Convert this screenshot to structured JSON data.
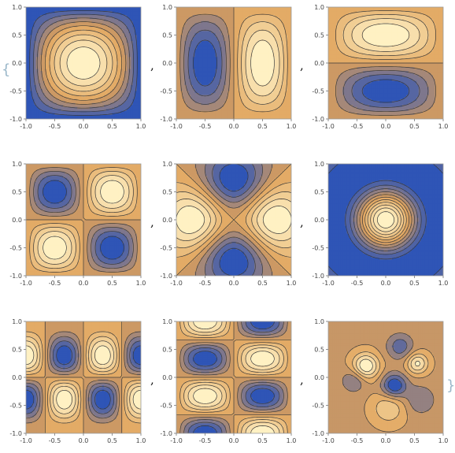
{
  "list": {
    "open_brace": "{",
    "close_brace": "}",
    "separator": ","
  },
  "palette": {
    "low": "#2f55b6",
    "mid": "#e0a25a",
    "high": "#fff1c3",
    "contour_line": "#3a3a3a"
  },
  "chart_data": [
    {
      "type": "contour",
      "id": "r1c1",
      "mode": "f1",
      "xlim": [
        -1,
        1
      ],
      "ylim": [
        -1,
        1
      ],
      "xticks": [
        -1.0,
        -0.5,
        0.0,
        0.5,
        1.0
      ],
      "yticks": [
        -1.0,
        -0.5,
        0.0,
        0.5,
        1.0
      ],
      "tick_labels": [
        "-1.0",
        "-0.5",
        "0.0",
        "0.5",
        "1.0"
      ],
      "levels": 9
    },
    {
      "type": "contour",
      "id": "r1c2",
      "mode": "f2",
      "xlim": [
        -1,
        1
      ],
      "ylim": [
        -1,
        1
      ],
      "xticks": [
        -1.0,
        -0.5,
        0.0,
        0.5,
        1.0
      ],
      "yticks": [
        -1.0,
        -0.5,
        0.0,
        0.5,
        1.0
      ],
      "tick_labels": [
        "-1.0",
        "-0.5",
        "0.0",
        "0.5",
        "1.0"
      ],
      "levels": 9
    },
    {
      "type": "contour",
      "id": "r1c3",
      "mode": "f3",
      "xlim": [
        -1,
        1
      ],
      "ylim": [
        -1,
        1
      ],
      "xticks": [
        -1.0,
        -0.5,
        0.0,
        0.5,
        1.0
      ],
      "yticks": [
        -1.0,
        -0.5,
        0.0,
        0.5,
        1.0
      ],
      "tick_labels": [
        "-1.0",
        "-0.5",
        "0.0",
        "0.5",
        "1.0"
      ],
      "levels": 9
    },
    {
      "type": "contour",
      "id": "r2c1",
      "mode": "f4",
      "xlim": [
        -1,
        1
      ],
      "ylim": [
        -1,
        1
      ],
      "xticks": [
        -1.0,
        -0.5,
        0.0,
        0.5,
        1.0
      ],
      "yticks": [
        -1.0,
        -0.5,
        0.0,
        0.5,
        1.0
      ],
      "tick_labels": [
        "-1.0",
        "-0.5",
        "0.0",
        "0.5",
        "1.0"
      ],
      "levels": 9
    },
    {
      "type": "contour",
      "id": "r2c2",
      "mode": "f5",
      "xlim": [
        -1,
        1
      ],
      "ylim": [
        -1,
        1
      ],
      "xticks": [
        -1.0,
        -0.5,
        0.0,
        0.5,
        1.0
      ],
      "yticks": [
        -1.0,
        -0.5,
        0.0,
        0.5,
        1.0
      ],
      "tick_labels": [
        "-1.0",
        "-0.5",
        "0.0",
        "0.5",
        "1.0"
      ],
      "levels": 9
    },
    {
      "type": "contour",
      "id": "r2c3",
      "mode": "f6",
      "xlim": [
        -1,
        1
      ],
      "ylim": [
        -1,
        1
      ],
      "xticks": [
        -1.0,
        -0.5,
        0.0,
        0.5,
        1.0
      ],
      "yticks": [
        -1.0,
        -0.5,
        0.0,
        0.5,
        1.0
      ],
      "tick_labels": [
        "-1.0",
        "-0.5",
        "0.0",
        "0.5",
        "1.0"
      ],
      "levels": 11
    },
    {
      "type": "contour",
      "id": "r3c1",
      "mode": "f7",
      "xlim": [
        -1,
        1
      ],
      "ylim": [
        -1,
        1
      ],
      "xticks": [
        -1.0,
        -0.5,
        0.0,
        0.5,
        1.0
      ],
      "yticks": [
        -1.0,
        -0.5,
        0.0,
        0.5,
        1.0
      ],
      "tick_labels": [
        "-1.0",
        "-0.5",
        "0.0",
        "0.5",
        "1.0"
      ],
      "levels": 9
    },
    {
      "type": "contour",
      "id": "r3c2",
      "mode": "f8",
      "xlim": [
        -1,
        1
      ],
      "ylim": [
        -1,
        1
      ],
      "xticks": [
        -1.0,
        -0.5,
        0.0,
        0.5,
        1.0
      ],
      "yticks": [
        -1.0,
        -0.5,
        0.0,
        0.5,
        1.0
      ],
      "tick_labels": [
        "-1.0",
        "-0.5",
        "0.0",
        "0.5",
        "1.0"
      ],
      "levels": 9
    },
    {
      "type": "contour",
      "id": "r3c3",
      "mode": "f9",
      "xlim": [
        -1,
        1
      ],
      "ylim": [
        -1,
        1
      ],
      "xticks": [
        -1.0,
        -0.5,
        0.0,
        0.5,
        1.0
      ],
      "yticks": [
        -1.0,
        -0.5,
        0.0,
        0.5,
        1.0
      ],
      "tick_labels": [
        "-1.0",
        "-0.5",
        "0.0",
        "0.5",
        "1.0"
      ],
      "levels": 7
    }
  ]
}
